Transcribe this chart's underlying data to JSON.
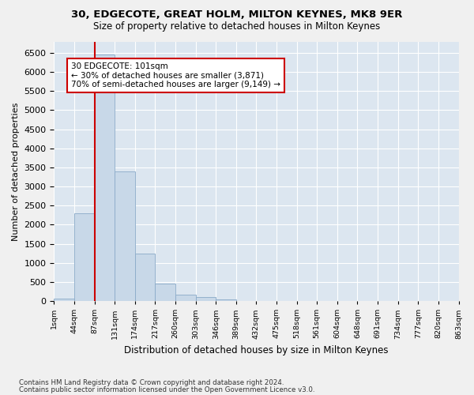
{
  "title1": "30, EDGECOTE, GREAT HOLM, MILTON KEYNES, MK8 9ER",
  "title2": "Size of property relative to detached houses in Milton Keynes",
  "xlabel": "Distribution of detached houses by size in Milton Keynes",
  "ylabel": "Number of detached properties",
  "footer1": "Contains HM Land Registry data © Crown copyright and database right 2024.",
  "footer2": "Contains public sector information licensed under the Open Government Licence v3.0.",
  "tick_labels": [
    "1sqm",
    "44sqm",
    "87sqm",
    "131sqm",
    "174sqm",
    "217sqm",
    "260sqm",
    "303sqm",
    "346sqm",
    "389sqm",
    "432sqm",
    "475sqm",
    "518sqm",
    "561sqm",
    "604sqm",
    "648sqm",
    "691sqm",
    "734sqm",
    "777sqm",
    "820sqm",
    "863sqm"
  ],
  "bar_heights": [
    60,
    2300,
    6450,
    3400,
    1250,
    460,
    170,
    100,
    50,
    0,
    0,
    0,
    0,
    0,
    0,
    0,
    0,
    0,
    0,
    0
  ],
  "bar_color": "#c8d8e8",
  "bar_edge_color": "#8aaac8",
  "vline_color": "#cc0000",
  "vline_pos": 1.5,
  "annotation_text": "30 EDGECOTE: 101sqm\n← 30% of detached houses are smaller (3,871)\n70% of semi-detached houses are larger (9,149) →",
  "ylim": [
    0,
    6800
  ],
  "yticks": [
    0,
    500,
    1000,
    1500,
    2000,
    2500,
    3000,
    3500,
    4000,
    4500,
    5000,
    5500,
    6000,
    6500
  ],
  "bg_color": "#dce6f0",
  "grid_color": "#ffffff",
  "fig_bg": "#f0f0f0"
}
